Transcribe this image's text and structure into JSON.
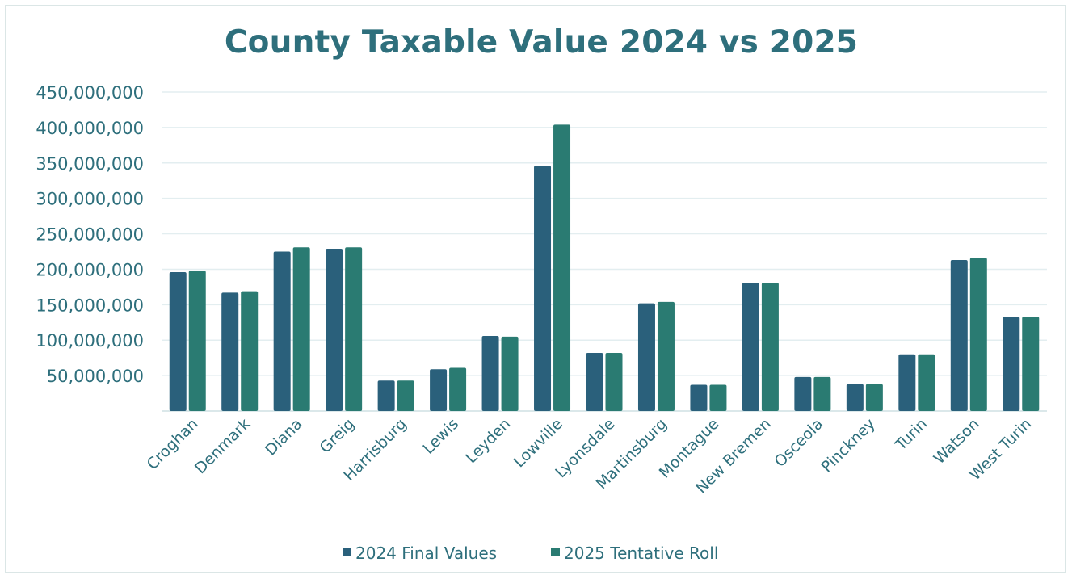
{
  "chart_data": {
    "type": "bar",
    "title": "County Taxable Value 2024 vs 2025",
    "xlabel": "",
    "ylabel": "",
    "ylim": [
      0,
      450000000
    ],
    "yticks": [
      {
        "value": 50000000,
        "label": "50,000,000"
      },
      {
        "value": 100000000,
        "label": "100,000,000"
      },
      {
        "value": 150000000,
        "label": "150,000,000"
      },
      {
        "value": 200000000,
        "label": "200,000,000"
      },
      {
        "value": 250000000,
        "label": "250,000,000"
      },
      {
        "value": 300000000,
        "label": "300,000,000"
      },
      {
        "value": 350000000,
        "label": "350,000,000"
      },
      {
        "value": 400000000,
        "label": "400,000,000"
      },
      {
        "value": 450000000,
        "label": "450,000,000"
      }
    ],
    "grid": true,
    "legend_position": "bottom",
    "categories": [
      "Croghan",
      "Denmark",
      "Diana",
      "Greig",
      "Harrisburg",
      "Lewis",
      "Leyden",
      "Lowville",
      "Lyonsdale",
      "Martinsburg",
      "Montague",
      "New Bremen",
      "Osceola",
      "Pinckney",
      "Turin",
      "Watson",
      "West Turin"
    ],
    "series": [
      {
        "name": "2024 Final Values",
        "color": "#2a607b",
        "values": [
          196000000,
          167000000,
          225000000,
          229000000,
          43000000,
          59000000,
          106000000,
          346000000,
          82000000,
          152000000,
          37000000,
          181000000,
          48000000,
          38000000,
          80000000,
          213000000,
          133000000
        ]
      },
      {
        "name": "2025 Tentative Roll",
        "color": "#2a7b72",
        "values": [
          198000000,
          169000000,
          231000000,
          231000000,
          43000000,
          61000000,
          105000000,
          404000000,
          82000000,
          154000000,
          37000000,
          181000000,
          48000000,
          38000000,
          80000000,
          216000000,
          133000000
        ]
      }
    ]
  }
}
